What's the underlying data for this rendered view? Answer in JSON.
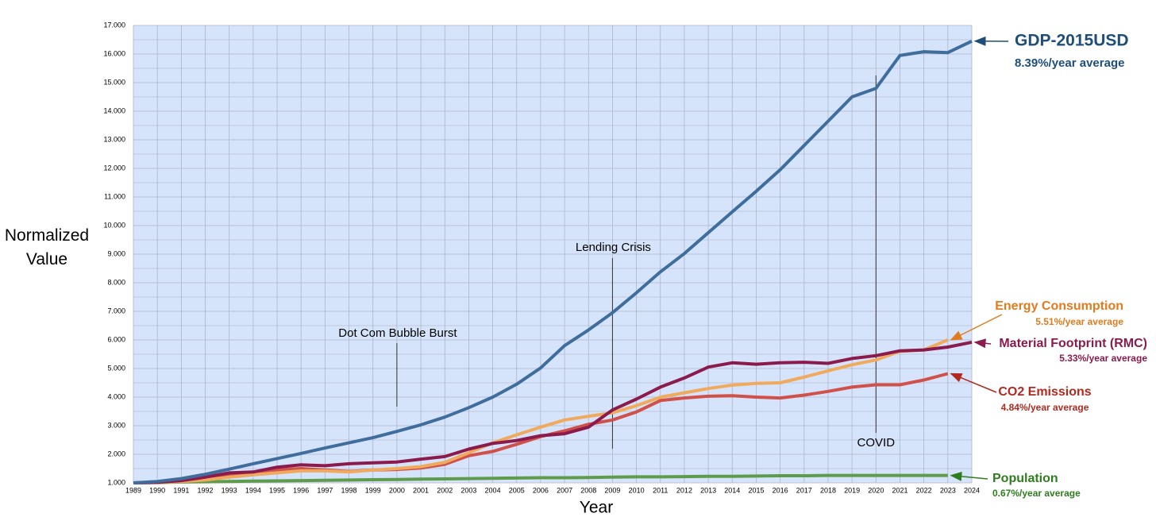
{
  "chart_data": {
    "type": "line",
    "ylabel": "Normalized Value",
    "xlabel": "Year",
    "x": [
      1989,
      1990,
      1991,
      1992,
      1993,
      1994,
      1995,
      1996,
      1997,
      1998,
      1999,
      2000,
      2001,
      2002,
      2003,
      2004,
      2005,
      2006,
      2007,
      2008,
      2009,
      2010,
      2011,
      2012,
      2013,
      2014,
      2015,
      2016,
      2017,
      2018,
      2019,
      2020,
      2021,
      2022,
      2023,
      2024
    ],
    "xlim": [
      1989,
      2024
    ],
    "xticks": [
      1989,
      1990,
      1991,
      1992,
      1993,
      1994,
      1995,
      1996,
      1997,
      1998,
      1999,
      2000,
      2001,
      2002,
      2003,
      2004,
      2005,
      2006,
      2007,
      2008,
      2009,
      2010,
      2011,
      2012,
      2013,
      2014,
      2015,
      2016,
      2017,
      2018,
      2019,
      2020,
      2021,
      2022,
      2023,
      2024
    ],
    "ylim": [
      1,
      17
    ],
    "yticks": [
      {
        "value": 1,
        "label": "1.000"
      },
      {
        "value": 2,
        "label": "2.000"
      },
      {
        "value": 3,
        "label": "3.000"
      },
      {
        "value": 4,
        "label": "4.000"
      },
      {
        "value": 5,
        "label": "5.000"
      },
      {
        "value": 6,
        "label": "6.000"
      },
      {
        "value": 7,
        "label": "7.000"
      },
      {
        "value": 8,
        "label": "8.000"
      },
      {
        "value": 9,
        "label": "9.000"
      },
      {
        "value": 10,
        "label": "10.000"
      },
      {
        "value": 11,
        "label": "11.000"
      },
      {
        "value": 12,
        "label": "12.000"
      },
      {
        "value": 13,
        "label": "13.000"
      },
      {
        "value": 14,
        "label": "14.000"
      },
      {
        "value": 15,
        "label": "15.000"
      },
      {
        "value": 16,
        "label": "16.000"
      },
      {
        "value": 17,
        "label": "17.000"
      }
    ],
    "grid": true,
    "series": [
      {
        "name": "GDP-2015USD",
        "note": "8.39%/year average",
        "color": "#3f6e9c",
        "label_color": "#1f4e79",
        "values": [
          1.0,
          1.05,
          1.15,
          1.3,
          1.48,
          1.67,
          1.85,
          2.03,
          2.22,
          2.4,
          2.58,
          2.8,
          3.03,
          3.3,
          3.63,
          4.0,
          4.45,
          5.02,
          5.8,
          6.35,
          6.95,
          7.65,
          8.38,
          9.02,
          9.75,
          10.48,
          11.2,
          11.95,
          12.8,
          13.65,
          14.5,
          14.8,
          15.95,
          16.08,
          16.05,
          16.45
        ]
      },
      {
        "name": "Energy Consumption",
        "note": "5.51%/year average",
        "color": "#f0aa5e",
        "label_color": "#e07b1f",
        "values": [
          1.0,
          1.02,
          1.05,
          1.1,
          1.2,
          1.28,
          1.35,
          1.42,
          1.42,
          1.38,
          1.45,
          1.5,
          1.57,
          1.72,
          2.05,
          2.4,
          2.68,
          2.95,
          3.2,
          3.33,
          3.45,
          3.7,
          4.0,
          4.15,
          4.3,
          4.42,
          4.48,
          4.5,
          4.7,
          4.92,
          5.13,
          5.3,
          5.6,
          5.65,
          6.0,
          null
        ]
      },
      {
        "name": "Material Footprint (RMC)",
        "note": "5.33%/year average",
        "color": "#8b1a4d",
        "label_color": "#8b1a4d",
        "values": [
          1.0,
          1.02,
          1.08,
          1.2,
          1.35,
          1.38,
          1.55,
          1.63,
          1.6,
          1.67,
          1.7,
          1.73,
          1.83,
          1.92,
          2.18,
          2.38,
          2.48,
          2.65,
          2.72,
          2.95,
          3.55,
          3.93,
          4.35,
          4.67,
          5.05,
          5.2,
          5.15,
          5.2,
          5.22,
          5.18,
          5.35,
          5.45,
          5.62,
          5.65,
          5.75,
          5.92
        ]
      },
      {
        "name": "CO2 Emissions",
        "note": "4.84%/year average",
        "color": "#d0504a",
        "label_color": "#b22a1f",
        "values": [
          1.0,
          1.02,
          1.07,
          1.15,
          1.28,
          1.35,
          1.45,
          1.5,
          1.45,
          1.4,
          1.45,
          1.47,
          1.52,
          1.65,
          1.95,
          2.1,
          2.35,
          2.62,
          2.82,
          3.05,
          3.2,
          3.48,
          3.88,
          3.97,
          4.03,
          4.05,
          4.0,
          3.97,
          4.07,
          4.2,
          4.35,
          4.43,
          4.43,
          4.6,
          4.82,
          null
        ]
      },
      {
        "name": "Population",
        "note": "0.67%/year average",
        "color": "#5e9c4c",
        "label_color": "#2e7d1e",
        "values": [
          1.0,
          1.01,
          1.03,
          1.04,
          1.05,
          1.06,
          1.07,
          1.08,
          1.09,
          1.1,
          1.11,
          1.12,
          1.13,
          1.14,
          1.15,
          1.16,
          1.17,
          1.18,
          1.18,
          1.19,
          1.2,
          1.21,
          1.21,
          1.22,
          1.23,
          1.23,
          1.24,
          1.25,
          1.25,
          1.26,
          1.26,
          1.26,
          1.26,
          1.26,
          1.26,
          null
        ]
      }
    ],
    "annotations": [
      {
        "text": "Dot Com Bubble Burst",
        "x": 2000
      },
      {
        "text": "Lending Crisis",
        "x": 2009
      },
      {
        "text": "COVID",
        "x": 2020
      }
    ]
  }
}
